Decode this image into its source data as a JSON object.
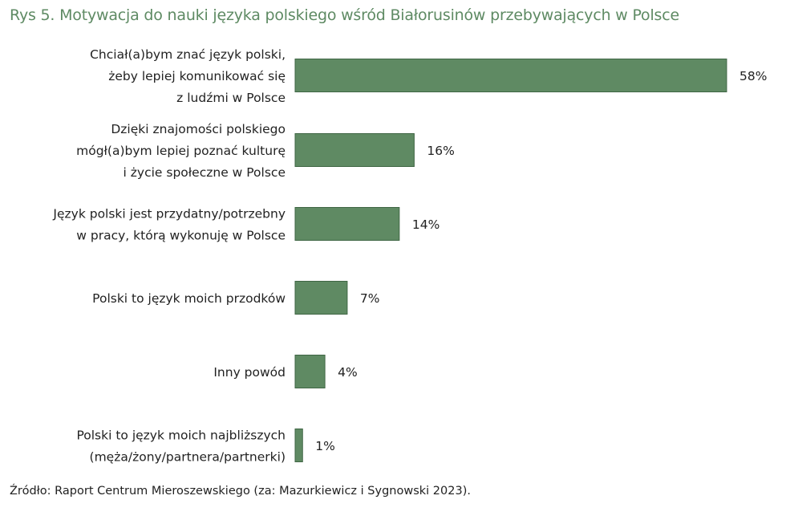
{
  "title": "Rys 5. Motywacja do nauki języka polskiego wśród Białorusinów przebywających w Polsce",
  "source": "Źródło: Raport Centrum Mieroszewskiego (za: Mazurkiewicz i Sygnowski 2023).",
  "colors": {
    "bar": "#5f8a63",
    "bar_stroke": "#3f6644",
    "title": "#5e8a63"
  },
  "chart_data": {
    "type": "bar",
    "orientation": "horizontal",
    "categories": [
      [
        "Chciał(a)bym znać język polski,",
        "żeby lepiej komunikować się",
        "z ludźmi w Polsce"
      ],
      [
        "Dzięki znajomości polskiego",
        "mógł(a)bym lepiej poznać kulturę",
        "i życie społeczne w Polsce"
      ],
      [
        "Język polski jest przydatny/potrzebny",
        "w pracy, którą wykonuję w Polsce"
      ],
      [
        "Polski to język moich przodków"
      ],
      [
        "Inny powód"
      ],
      [
        "Polski to język moich najbliższych",
        "(męża/żony/partnera/partnerki)"
      ]
    ],
    "values": [
      58,
      16,
      14,
      7,
      4,
      1
    ],
    "value_labels": [
      "58%",
      "16%",
      "14%",
      "7%",
      "4%",
      "1%"
    ],
    "unit": "%",
    "xlim": [
      0,
      58
    ],
    "grid": false,
    "legend": "none"
  }
}
